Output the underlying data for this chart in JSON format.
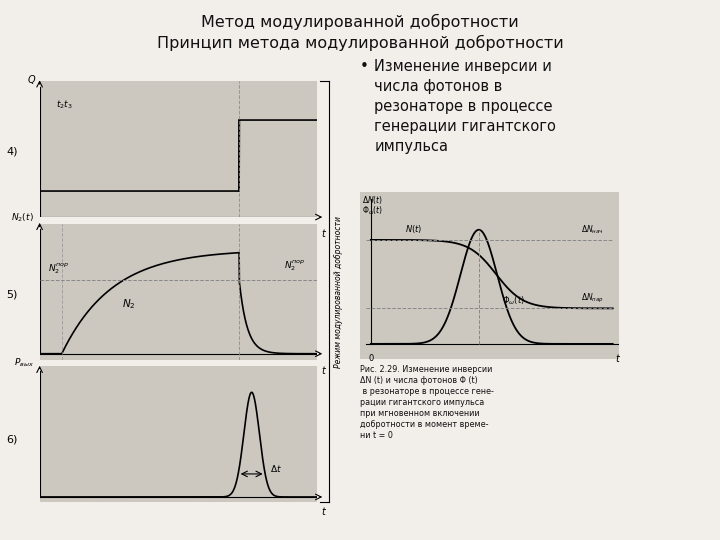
{
  "title_line1": "Метод модулированной добротности",
  "title_line2": "Принцип метода модулированной добротности",
  "bullet_text": "Изменение инверсии и\nчисла фотонов в\nрезонаторе в процессе\nгенерации гигантского\nимпульса",
  "fig_caption": "Рис. 2.29. Изменение инверсии\nΔN (t) и числа фотонов Φ (t)\n в резонаторе в процессе гене-\nрации гигантского импульса\nпри мгновенном включении\nдобротности в момент време-\nни t = 0",
  "bg_color": "#f2eeea",
  "plot_bg": "#ccc8c0",
  "sidebar_text": "Режим модулированной добротности"
}
